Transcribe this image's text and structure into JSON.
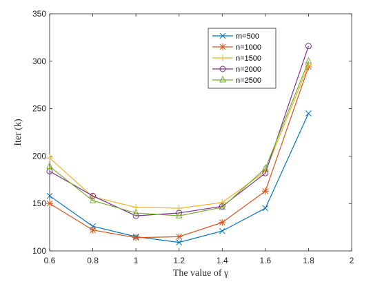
{
  "chart_data": {
    "type": "line",
    "xlabel": "The value of γ",
    "ylabel": "Iter (k)",
    "xlim": [
      0.6,
      2.0
    ],
    "ylim": [
      100,
      350
    ],
    "x": [
      0.6,
      0.8,
      1.0,
      1.2,
      1.4,
      1.6,
      1.8
    ],
    "xticks": [
      "0.6",
      "0.8",
      "1",
      "1.2",
      "1.4",
      "1.6",
      "1.8",
      "2"
    ],
    "yticks": [
      "100",
      "150",
      "200",
      "250",
      "300",
      "350"
    ],
    "grid": false,
    "legend_position": "top-right",
    "series": [
      {
        "name": "m=500",
        "color": "#0072BD",
        "marker": "x",
        "values": [
          158,
          126,
          115,
          109,
          121,
          145,
          245
        ]
      },
      {
        "name": "n=1000",
        "color": "#D95319",
        "marker": "asterisk",
        "values": [
          150,
          122,
          114,
          115,
          130,
          163,
          294
        ]
      },
      {
        "name": "n=1500",
        "color": "#EDB120",
        "marker": "plus",
        "values": [
          198,
          157,
          146,
          145,
          151,
          184,
          296
        ]
      },
      {
        "name": "n=2000",
        "color": "#7E2F8E",
        "marker": "circle",
        "values": [
          184,
          158,
          137,
          140,
          147,
          182,
          316
        ]
      },
      {
        "name": "n=2500",
        "color": "#77AC30",
        "marker": "triangle",
        "values": [
          189,
          153,
          140,
          137,
          146,
          187,
          300
        ]
      }
    ]
  }
}
